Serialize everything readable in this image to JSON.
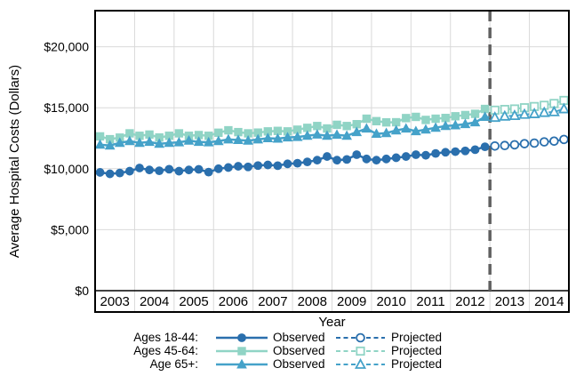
{
  "chart_data": {
    "type": "line",
    "title": "",
    "xlabel": "Year",
    "ylabel": "Average Hospital Costs (Dollars)",
    "x_years": [
      "2003",
      "2004",
      "2005",
      "2006",
      "2007",
      "2008",
      "2009",
      "2010",
      "2011",
      "2012",
      "2013",
      "2014"
    ],
    "points_per_year": 4,
    "ylim": [
      0,
      23000
    ],
    "y_tick_values": [
      0,
      5000,
      10000,
      15000,
      20000
    ],
    "y_tick_labels": [
      "$0",
      "$5,000",
      "$10,000",
      "$15,000",
      "$20,000"
    ],
    "grid": true,
    "projection_divider_after_year": "2012",
    "series": [
      {
        "name": "Ages 18-44",
        "marker": "circle",
        "color": "#2a6fad",
        "observed": [
          9700,
          9580,
          9650,
          9800,
          10060,
          9900,
          9830,
          9960,
          9800,
          9900,
          9950,
          9720,
          10000,
          10100,
          10200,
          10150,
          10260,
          10310,
          10250,
          10400,
          10450,
          10560,
          10700,
          11000,
          10700,
          10760,
          11150,
          10800,
          10700,
          10800,
          10900,
          11000,
          11150,
          11100,
          11250,
          11350,
          11400,
          11460,
          11560,
          11800
        ],
        "projected": [
          11860,
          11900,
          11960,
          12050,
          12100,
          12200,
          12260,
          12400
        ]
      },
      {
        "name": "Ages 45-64",
        "marker": "square",
        "color": "#90d4c5",
        "observed": [
          12650,
          12420,
          12550,
          12900,
          12700,
          12800,
          12560,
          12700,
          12900,
          12700,
          12760,
          12700,
          12950,
          13150,
          13000,
          12900,
          12960,
          13060,
          13100,
          13060,
          13200,
          13350,
          13500,
          13300,
          13600,
          13500,
          13650,
          14100,
          13900,
          13800,
          13810,
          14150,
          14250,
          14000,
          14100,
          14160,
          14300,
          14400,
          14500,
          14900
        ],
        "projected": [
          14800,
          14860,
          14900,
          15000,
          15100,
          15200,
          15350,
          15600
        ]
      },
      {
        "name": "Age 65+",
        "marker": "triangle",
        "color": "#45a2c9",
        "observed": [
          11970,
          11900,
          12120,
          12260,
          12120,
          12200,
          12040,
          12120,
          12160,
          12300,
          12200,
          12160,
          12260,
          12400,
          12350,
          12300,
          12400,
          12500,
          12460,
          12560,
          12600,
          12700,
          12800,
          12700,
          12780,
          12700,
          13000,
          13290,
          12860,
          12920,
          13140,
          13290,
          13070,
          13210,
          13360,
          13500,
          13560,
          13660,
          13800,
          14250
        ],
        "projected": [
          14200,
          14300,
          14350,
          14450,
          14500,
          14600,
          14660,
          14900
        ]
      }
    ],
    "legend": {
      "position": "bottom",
      "rows": [
        {
          "label": "Ages 18-44:",
          "observed_label": "Observed",
          "projected_label": "Projected"
        },
        {
          "label": "Ages 45-64:",
          "observed_label": "Observed",
          "projected_label": "Projected"
        },
        {
          "label": "Age 65+:",
          "observed_label": "Observed",
          "projected_label": "Projected"
        }
      ]
    },
    "colors": {
      "ages_18_44": "#2a6fad",
      "ages_45_64": "#90d4c5",
      "age_65_plus": "#45a2c9",
      "divider": "#606060",
      "gridline": "#d9d9d9",
      "frame": "#000000"
    }
  }
}
